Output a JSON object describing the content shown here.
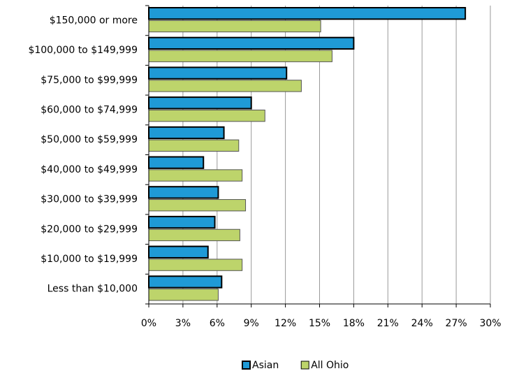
{
  "chart_data": {
    "type": "bar",
    "orientation": "horizontal",
    "categories": [
      "$150,000 or more",
      "$100,000 to $149,999",
      "$75,000 to $99,999",
      "$60,000 to $74,999",
      "$50,000 to $59,999",
      "$40,000 to $49,999",
      "$30,000 to $39,999",
      "$20,000 to $29,999",
      "$10,000 to $19,999",
      "Less than $10,000"
    ],
    "series": [
      {
        "name": "Asian",
        "color": "#1f9ad6",
        "values": [
          27.8,
          18.0,
          12.1,
          9.0,
          6.6,
          4.8,
          6.1,
          5.8,
          5.2,
          6.4
        ]
      },
      {
        "name": "All Ohio",
        "color": "#bdd46b",
        "values": [
          15.1,
          16.1,
          13.4,
          10.2,
          7.9,
          8.2,
          8.5,
          8.0,
          8.2,
          6.1
        ]
      }
    ],
    "xlim": [
      0,
      30
    ],
    "xticks": [
      {
        "value": 0,
        "label": "0%"
      },
      {
        "value": 3,
        "label": "3%"
      },
      {
        "value": 6,
        "label": "6%"
      },
      {
        "value": 9,
        "label": "9%"
      },
      {
        "value": 12,
        "label": "12%"
      },
      {
        "value": 15,
        "label": "15%"
      },
      {
        "value": 18,
        "label": "18%"
      },
      {
        "value": 21,
        "label": "21%"
      },
      {
        "value": 24,
        "label": "24%"
      },
      {
        "value": 27,
        "label": "27%"
      },
      {
        "value": 30,
        "label": "30%"
      }
    ],
    "grid": true,
    "legend": "bottom"
  }
}
